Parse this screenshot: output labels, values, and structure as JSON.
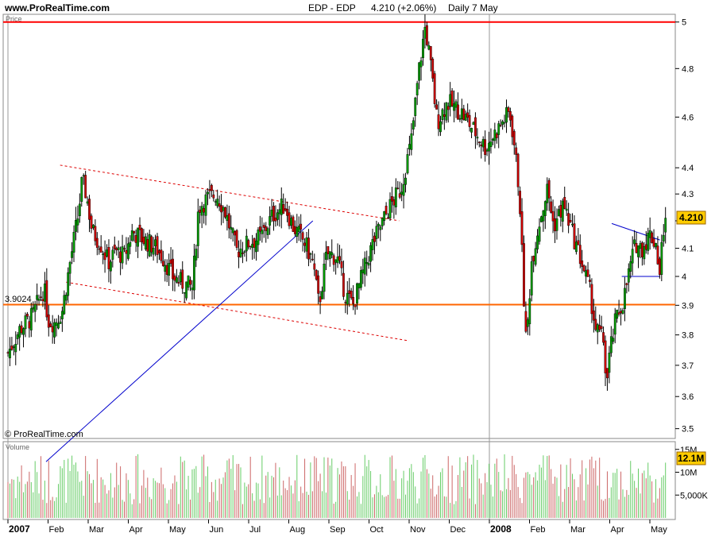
{
  "header": {
    "site": "www.ProRealTime.com",
    "ticker": "EDP - EDP",
    "last": "4.210 (+2.06%)",
    "period": "Daily  7 May"
  },
  "price_panel": {
    "label": "Price",
    "copyright": "© ProRealTime.com",
    "last_label": "4.210",
    "support_label": "3.9024"
  },
  "volume_panel": {
    "label": "Volume",
    "last_label": "12.1M"
  },
  "colors": {
    "up": "#009900",
    "down": "#cc0000",
    "resistance": "#ff0000",
    "support": "#ff6600",
    "trendline": "#0000cc",
    "channel": "#dd0000",
    "vol_up": "#66cc66",
    "vol_down": "#cc6666",
    "tag": "#ffcc00"
  },
  "chart_data": {
    "type": "candlestick",
    "x_axis": {
      "ticks": [
        "2007",
        "Feb",
        "Mar",
        "Apr",
        "May",
        "Jun",
        "Jul",
        "Aug",
        "Sep",
        "Oct",
        "Nov",
        "Dec",
        "2008",
        "Feb",
        "Mar",
        "Apr",
        "May"
      ],
      "tick_month_index": [
        0,
        1,
        2,
        3,
        4,
        5,
        6,
        7,
        8,
        9,
        10,
        11,
        12,
        13,
        14,
        15,
        16
      ],
      "date_range": [
        "2007-01-02",
        "2008-05-07"
      ]
    },
    "y_axis": {
      "scale": "log",
      "ticks": [
        3.5,
        3.6,
        3.7,
        3.8,
        3.9,
        4,
        4.1,
        4.2,
        4.3,
        4.4,
        4.6,
        4.8,
        5
      ],
      "range": [
        3.47,
        5.02
      ]
    },
    "volume_axis": {
      "ticks": [
        "15M",
        "10M",
        "5,000K"
      ],
      "tick_values": [
        15000000,
        10000000,
        5000000
      ],
      "range": [
        0,
        16000000
      ]
    },
    "horizontal_lines": [
      {
        "name": "resistance",
        "value": 5.0
      },
      {
        "name": "support",
        "value": 3.9024
      }
    ],
    "trendlines": [
      {
        "name": "uptrend",
        "from": {
          "month": 0.95,
          "price": 3.4
        },
        "to": {
          "month": 7.6,
          "price": 4.2
        }
      },
      {
        "name": "channel-upper",
        "from": {
          "month": 1.3,
          "price": 4.41
        },
        "to": {
          "month": 9.75,
          "price": 4.2
        }
      },
      {
        "name": "channel-lower",
        "from": {
          "month": 1.45,
          "price": 3.98
        },
        "to": {
          "month": 10.0,
          "price": 3.78
        }
      },
      {
        "name": "pennant-upper",
        "from": {
          "month": 15.05,
          "price": 4.19
        },
        "to": {
          "month": 16.25,
          "price": 4.13
        }
      },
      {
        "name": "pennant-lower",
        "from": {
          "month": 15.3,
          "price": 4.0
        },
        "to": {
          "month": 16.25,
          "price": 4.0
        }
      }
    ],
    "price_path": [
      [
        0.0,
        3.74
      ],
      [
        0.3,
        3.82
      ],
      [
        0.6,
        3.86
      ],
      [
        0.9,
        3.96
      ],
      [
        1.0,
        3.85
      ],
      [
        1.15,
        3.84
      ],
      [
        1.35,
        3.88
      ],
      [
        1.55,
        4.05
      ],
      [
        1.75,
        4.22
      ],
      [
        1.85,
        4.35
      ],
      [
        1.95,
        4.3
      ],
      [
        2.1,
        4.16
      ],
      [
        2.3,
        4.12
      ],
      [
        2.5,
        4.05
      ],
      [
        2.7,
        4.09
      ],
      [
        2.9,
        4.07
      ],
      [
        3.1,
        4.16
      ],
      [
        3.4,
        4.13
      ],
      [
        3.7,
        4.1
      ],
      [
        3.9,
        4.06
      ],
      [
        4.1,
        4.0
      ],
      [
        4.3,
        3.98
      ],
      [
        4.6,
        3.96
      ],
      [
        4.75,
        4.25
      ],
      [
        4.95,
        4.28
      ],
      [
        5.2,
        4.3
      ],
      [
        5.4,
        4.24
      ],
      [
        5.7,
        4.09
      ],
      [
        6.0,
        4.12
      ],
      [
        6.3,
        4.14
      ],
      [
        6.6,
        4.22
      ],
      [
        6.9,
        4.26
      ],
      [
        7.1,
        4.18
      ],
      [
        7.4,
        4.12
      ],
      [
        7.6,
        4.05
      ],
      [
        7.75,
        3.9
      ],
      [
        7.95,
        4.08
      ],
      [
        8.2,
        4.07
      ],
      [
        8.4,
        3.94
      ],
      [
        8.6,
        3.9
      ],
      [
        8.8,
        3.99
      ],
      [
        9.1,
        4.12
      ],
      [
        9.35,
        4.2
      ],
      [
        9.55,
        4.26
      ],
      [
        9.8,
        4.32
      ],
      [
        10.05,
        4.5
      ],
      [
        10.25,
        4.8
      ],
      [
        10.4,
        4.98
      ],
      [
        10.5,
        4.86
      ],
      [
        10.7,
        4.58
      ],
      [
        10.95,
        4.66
      ],
      [
        11.3,
        4.62
      ],
      [
        11.6,
        4.55
      ],
      [
        11.9,
        4.48
      ],
      [
        12.2,
        4.55
      ],
      [
        12.5,
        4.62
      ],
      [
        12.6,
        4.52
      ],
      [
        12.75,
        4.3
      ],
      [
        12.85,
        3.95
      ],
      [
        12.92,
        3.76
      ],
      [
        13.05,
        4.05
      ],
      [
        13.25,
        4.2
      ],
      [
        13.45,
        4.32
      ],
      [
        13.6,
        4.18
      ],
      [
        13.85,
        4.26
      ],
      [
        14.1,
        4.14
      ],
      [
        14.3,
        4.05
      ],
      [
        14.5,
        3.95
      ],
      [
        14.65,
        3.82
      ],
      [
        14.85,
        3.78
      ],
      [
        14.92,
        3.63
      ],
      [
        15.0,
        3.74
      ],
      [
        15.15,
        3.85
      ],
      [
        15.35,
        3.92
      ],
      [
        15.5,
        4.03
      ],
      [
        15.65,
        4.12
      ],
      [
        15.8,
        4.1
      ],
      [
        16.0,
        4.15
      ],
      [
        16.15,
        4.12
      ],
      [
        16.25,
        4.0
      ],
      [
        16.32,
        4.16
      ],
      [
        16.39,
        4.21
      ]
    ],
    "last_close": 4.21,
    "last_change_pct": 2.06
  }
}
